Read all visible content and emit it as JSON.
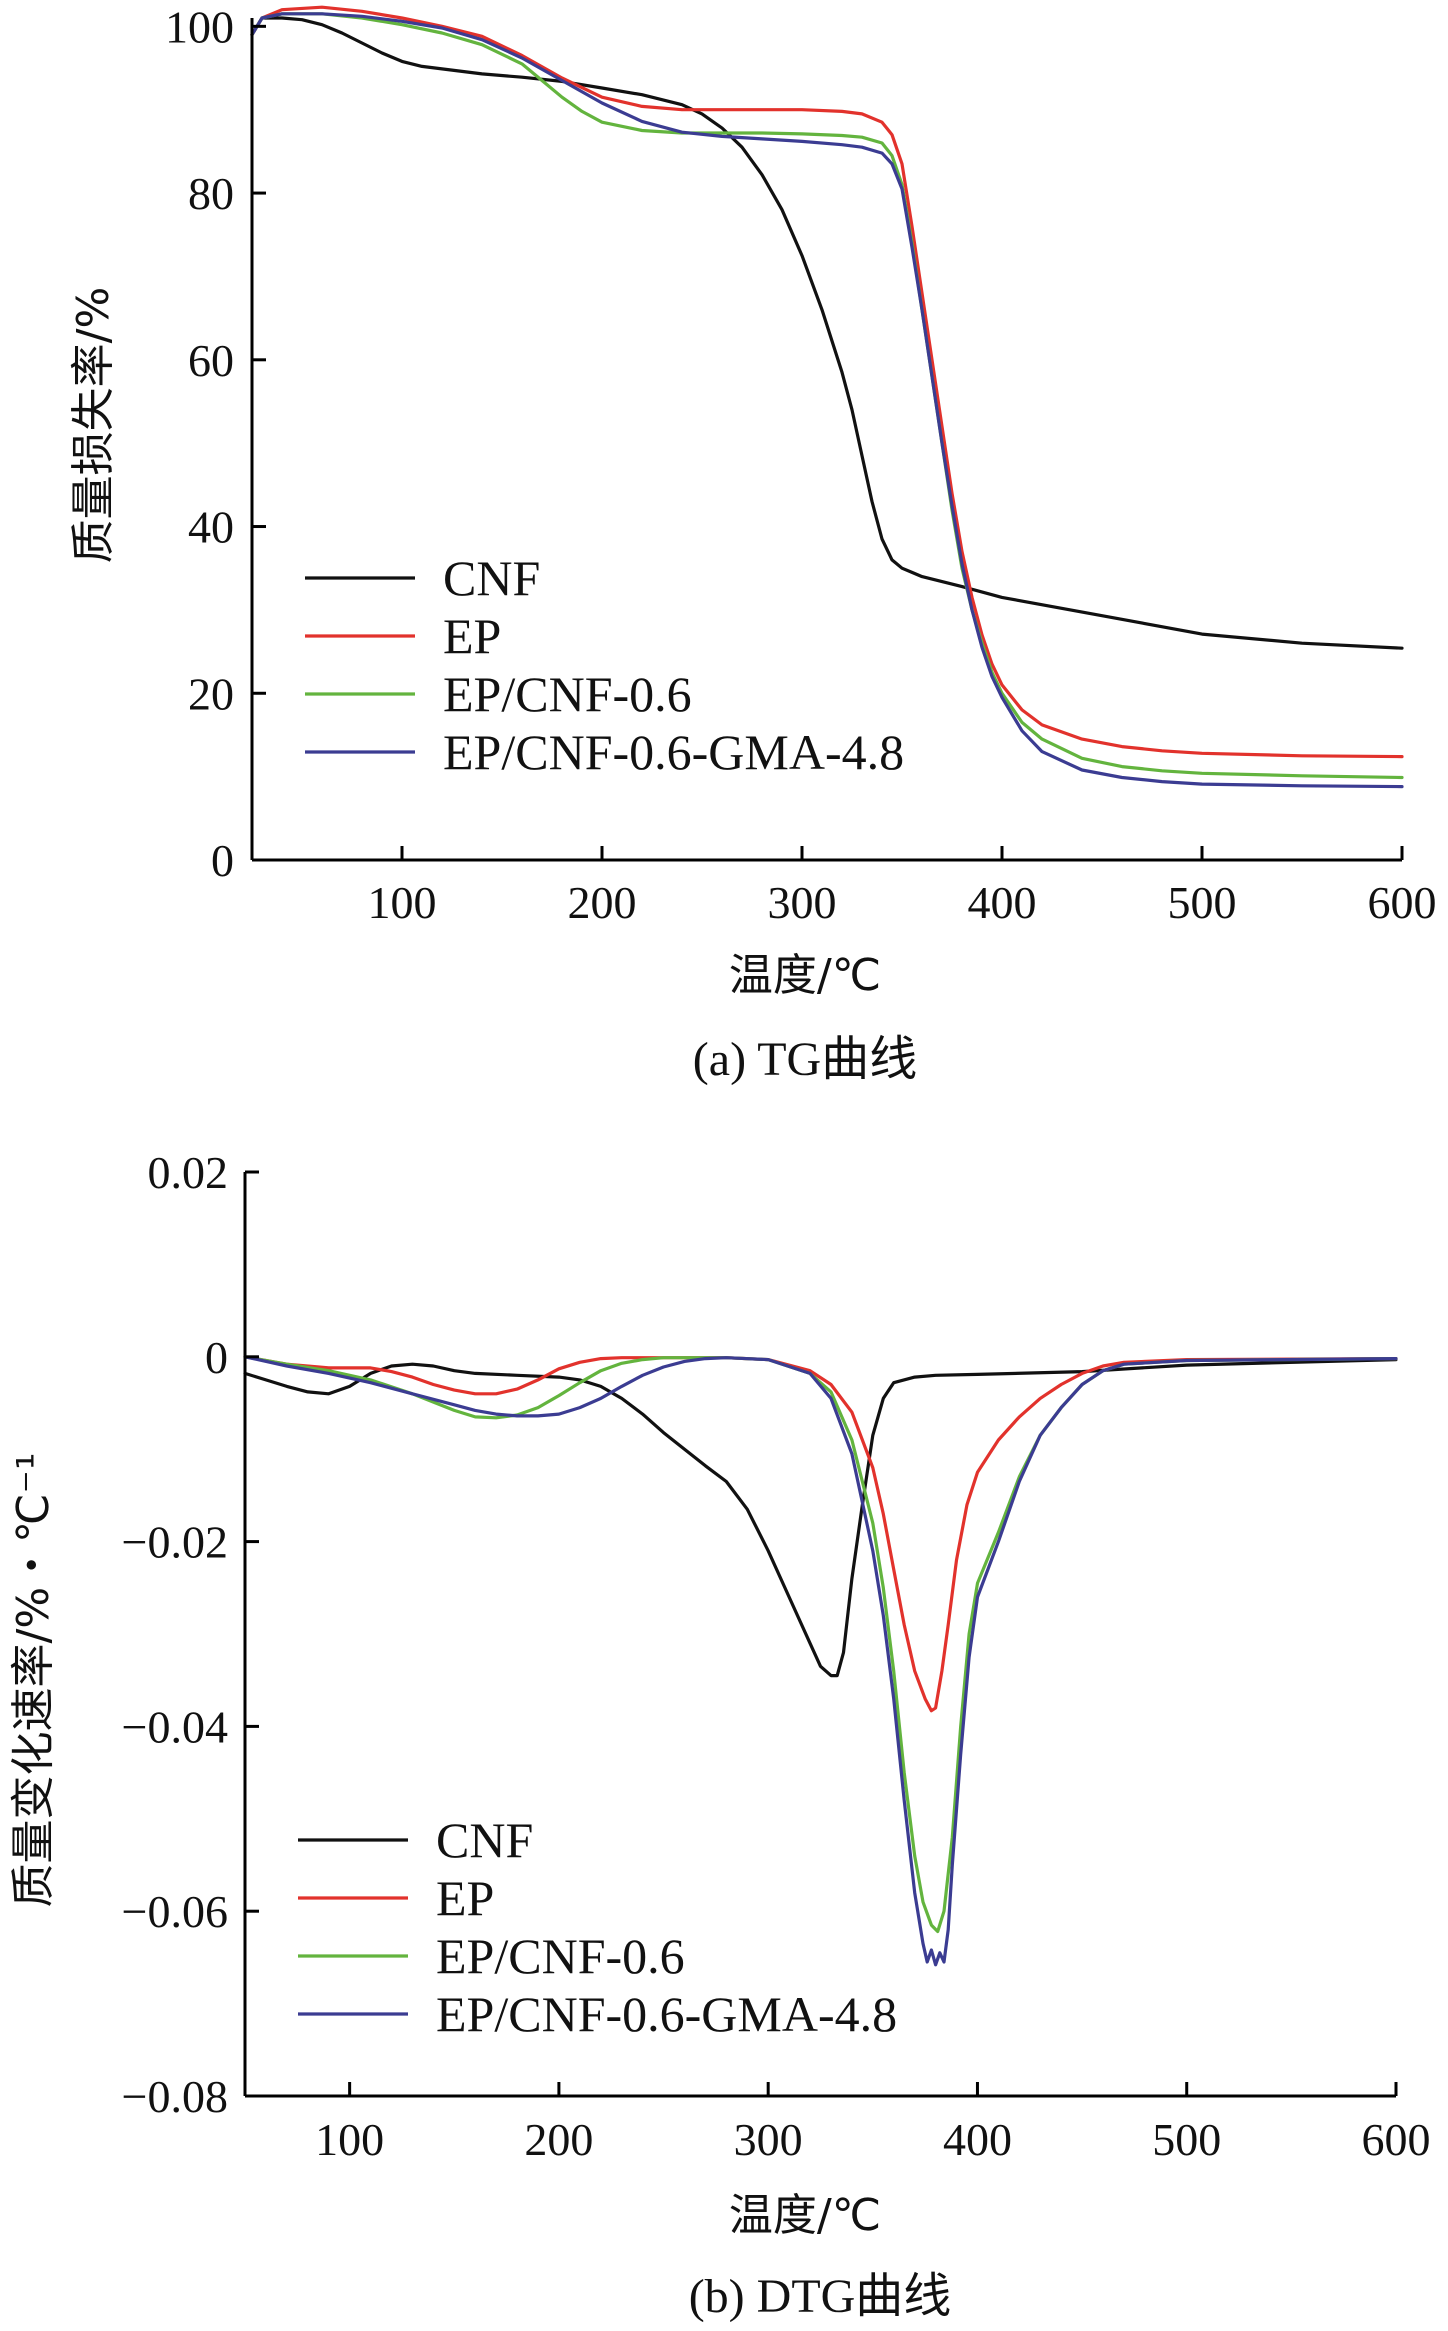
{
  "chart_data": [
    {
      "type": "line",
      "panel": "a",
      "caption": "(a) TG曲线",
      "title": "",
      "xlabel": "温度/℃",
      "ylabel": "质量损失率/%",
      "xlim": [
        25,
        600
      ],
      "ylim": [
        0,
        101
      ],
      "xticks": [
        100,
        200,
        300,
        400,
        500,
        600
      ],
      "yticks": [
        0,
        20,
        40,
        60,
        80,
        100
      ],
      "xtick_labels": [
        "100",
        "200",
        "300",
        "400",
        "500",
        "600"
      ],
      "ytick_labels": [
        "0",
        "20",
        "40",
        "60",
        "80",
        "100"
      ],
      "grid": false,
      "legend_position": "lower-left",
      "series": [
        {
          "name": "CNF",
          "color": "#111111",
          "x": [
            25,
            30,
            40,
            50,
            60,
            70,
            80,
            90,
            100,
            110,
            120,
            140,
            160,
            180,
            200,
            220,
            240,
            250,
            260,
            270,
            280,
            290,
            300,
            310,
            320,
            325,
            330,
            335,
            340,
            345,
            350,
            355,
            360,
            380,
            400,
            450,
            500,
            550,
            600
          ],
          "y": [
            99,
            101,
            101,
            100.8,
            100.2,
            99.2,
            98,
            96.8,
            95.8,
            95.2,
            94.9,
            94.3,
            93.9,
            93.4,
            92.6,
            91.8,
            90.6,
            89.5,
            87.8,
            85.5,
            82.2,
            78,
            72.5,
            66,
            58.5,
            54,
            48.5,
            43,
            38.5,
            36,
            35,
            34.5,
            34,
            32.8,
            31.5,
            29.3,
            27.1,
            26,
            25.4
          ]
        },
        {
          "name": "EP",
          "color": "#e2322c",
          "x": [
            25,
            30,
            40,
            60,
            80,
            100,
            120,
            140,
            160,
            180,
            200,
            220,
            240,
            260,
            280,
            300,
            320,
            330,
            340,
            345,
            350,
            355,
            360,
            365,
            370,
            375,
            380,
            385,
            390,
            395,
            400,
            410,
            420,
            440,
            460,
            480,
            500,
            550,
            600
          ],
          "y": [
            99,
            101,
            102,
            102.3,
            101.8,
            101,
            100,
            98.8,
            96.5,
            93.8,
            91.5,
            90.4,
            90,
            90,
            90,
            90,
            89.8,
            89.5,
            88.5,
            87,
            83.5,
            76,
            68,
            60,
            52,
            44,
            37,
            31.5,
            27,
            23.5,
            21,
            18,
            16.2,
            14.5,
            13.6,
            13.1,
            12.8,
            12.5,
            12.4
          ]
        },
        {
          "name": "EP/CNF-0.6",
          "color": "#63b43e",
          "x": [
            25,
            30,
            40,
            60,
            80,
            100,
            120,
            140,
            160,
            170,
            180,
            190,
            200,
            220,
            240,
            260,
            280,
            300,
            320,
            330,
            340,
            345,
            350,
            355,
            360,
            365,
            370,
            375,
            380,
            385,
            390,
            395,
            400,
            410,
            420,
            440,
            460,
            480,
            500,
            550,
            600
          ],
          "y": [
            99,
            101,
            101.5,
            101.5,
            101,
            100.2,
            99.2,
            97.8,
            95.5,
            93.5,
            91.5,
            89.8,
            88.5,
            87.5,
            87.2,
            87.2,
            87.2,
            87.1,
            86.9,
            86.7,
            86,
            84.5,
            81,
            74,
            66,
            58,
            50,
            42,
            35,
            30,
            26,
            22.5,
            20,
            16.5,
            14.5,
            12.2,
            11.2,
            10.7,
            10.4,
            10.1,
            9.9
          ]
        },
        {
          "name": "EP/CNF-0.6-GMA-4.8",
          "color": "#3b3c92",
          "x": [
            25,
            30,
            40,
            60,
            80,
            100,
            120,
            140,
            160,
            180,
            200,
            220,
            240,
            260,
            280,
            300,
            320,
            330,
            340,
            345,
            350,
            355,
            360,
            365,
            370,
            375,
            380,
            385,
            390,
            395,
            400,
            410,
            420,
            440,
            460,
            480,
            500,
            550,
            600
          ],
          "y": [
            99,
            101,
            101.5,
            101.5,
            101.2,
            100.6,
            99.8,
            98.4,
            96.2,
            93.5,
            90.8,
            88.6,
            87.3,
            86.8,
            86.5,
            86.2,
            85.8,
            85.5,
            84.8,
            83.5,
            80.5,
            73.5,
            66,
            58,
            50,
            42.5,
            35.5,
            30,
            25.5,
            22,
            19.5,
            15.5,
            13,
            10.8,
            9.9,
            9.4,
            9.1,
            8.9,
            8.8
          ]
        }
      ]
    },
    {
      "type": "line",
      "panel": "b",
      "caption": "(b) DTG曲线",
      "title": "",
      "xlabel": "温度/℃",
      "ylabel": "质量变化速率/%・℃⁻¹",
      "xlim": [
        50,
        600
      ],
      "ylim": [
        -0.08,
        0.02
      ],
      "xticks": [
        100,
        200,
        300,
        400,
        500,
        600
      ],
      "yticks": [
        0.02,
        0,
        -0.02,
        -0.04,
        -0.06,
        -0.08
      ],
      "xtick_labels": [
        "100",
        "200",
        "300",
        "400",
        "500",
        "600"
      ],
      "ytick_labels": [
        "0.02",
        "0",
        "−0.02",
        "−0.04",
        "−0.06",
        "−0.08"
      ],
      "grid": false,
      "legend_position": "lower-left",
      "series": [
        {
          "name": "CNF",
          "color": "#111111",
          "x": [
            50,
            60,
            70,
            80,
            90,
            100,
            110,
            120,
            130,
            140,
            150,
            160,
            180,
            200,
            210,
            220,
            230,
            240,
            250,
            260,
            270,
            280,
            290,
            300,
            310,
            320,
            325,
            330,
            333,
            336,
            340,
            345,
            350,
            355,
            360,
            370,
            380,
            400,
            450,
            500,
            600
          ],
          "y": [
            -0.0018,
            -0.0025,
            -0.0032,
            -0.0038,
            -0.004,
            -0.0032,
            -0.0018,
            -0.001,
            -0.0008,
            -0.001,
            -0.0015,
            -0.0018,
            -0.002,
            -0.0022,
            -0.0025,
            -0.0032,
            -0.0045,
            -0.0062,
            -0.0082,
            -0.01,
            -0.0118,
            -0.0135,
            -0.0165,
            -0.021,
            -0.026,
            -0.031,
            -0.0335,
            -0.0345,
            -0.0345,
            -0.032,
            -0.024,
            -0.016,
            -0.0085,
            -0.0045,
            -0.0028,
            -0.0022,
            -0.002,
            -0.0019,
            -0.0016,
            -0.0009,
            -0.0003
          ]
        },
        {
          "name": "EP",
          "color": "#e2322c",
          "x": [
            50,
            70,
            90,
            100,
            110,
            120,
            130,
            140,
            150,
            160,
            170,
            180,
            190,
            200,
            210,
            220,
            230,
            250,
            280,
            300,
            320,
            330,
            340,
            350,
            355,
            360,
            365,
            370,
            375,
            378,
            380,
            383,
            386,
            390,
            395,
            400,
            410,
            420,
            430,
            440,
            450,
            460,
            470,
            500,
            600
          ],
          "y": [
            0,
            -0.0008,
            -0.0012,
            -0.0012,
            -0.0012,
            -0.0016,
            -0.0022,
            -0.003,
            -0.0036,
            -0.004,
            -0.004,
            -0.0035,
            -0.0025,
            -0.0013,
            -0.0006,
            -0.0002,
            -0.0001,
            -0.0001,
            -0.0001,
            -0.0003,
            -0.0015,
            -0.003,
            -0.006,
            -0.012,
            -0.017,
            -0.023,
            -0.029,
            -0.034,
            -0.037,
            -0.0383,
            -0.038,
            -0.034,
            -0.029,
            -0.022,
            -0.016,
            -0.0125,
            -0.009,
            -0.0065,
            -0.0045,
            -0.003,
            -0.0018,
            -0.001,
            -0.0006,
            -0.0003,
            -0.0002
          ]
        },
        {
          "name": "EP/CNF-0.6",
          "color": "#63b43e",
          "x": [
            50,
            70,
            90,
            110,
            130,
            150,
            160,
            170,
            180,
            190,
            200,
            210,
            220,
            230,
            240,
            250,
            260,
            280,
            300,
            320,
            330,
            340,
            350,
            355,
            360,
            365,
            370,
            374,
            378,
            381,
            384,
            388,
            392,
            396,
            400,
            410,
            420,
            430,
            440,
            450,
            460,
            470,
            500,
            600
          ],
          "y": [
            0,
            -0.0008,
            -0.0015,
            -0.0025,
            -0.004,
            -0.0058,
            -0.0065,
            -0.0066,
            -0.0063,
            -0.0055,
            -0.0042,
            -0.0028,
            -0.0015,
            -0.0007,
            -0.0003,
            -0.0001,
            -0.0001,
            -0.0001,
            -0.0003,
            -0.0018,
            -0.0038,
            -0.009,
            -0.018,
            -0.025,
            -0.034,
            -0.045,
            -0.054,
            -0.059,
            -0.0615,
            -0.0622,
            -0.06,
            -0.052,
            -0.04,
            -0.03,
            -0.0245,
            -0.019,
            -0.013,
            -0.0085,
            -0.0055,
            -0.003,
            -0.0015,
            -0.0008,
            -0.0004,
            -0.0002
          ]
        },
        {
          "name": "EP/CNF-0.6-GMA-4.8",
          "color": "#3b3c92",
          "x": [
            50,
            70,
            90,
            110,
            130,
            150,
            160,
            170,
            180,
            190,
            200,
            210,
            220,
            230,
            240,
            250,
            260,
            270,
            280,
            300,
            320,
            330,
            340,
            350,
            355,
            360,
            365,
            370,
            374,
            376,
            378,
            380,
            382,
            384,
            386,
            388,
            392,
            396,
            400,
            410,
            420,
            430,
            440,
            450,
            460,
            470,
            500,
            600
          ],
          "y": [
            0,
            -0.001,
            -0.0018,
            -0.0028,
            -0.004,
            -0.0052,
            -0.0058,
            -0.0062,
            -0.0064,
            -0.0064,
            -0.0062,
            -0.0055,
            -0.0045,
            -0.0032,
            -0.002,
            -0.0011,
            -0.0005,
            -0.0002,
            -0.0001,
            -0.0003,
            -0.0018,
            -0.0045,
            -0.0105,
            -0.021,
            -0.028,
            -0.037,
            -0.048,
            -0.058,
            -0.0635,
            -0.0655,
            -0.0642,
            -0.0658,
            -0.0645,
            -0.0655,
            -0.062,
            -0.055,
            -0.043,
            -0.0325,
            -0.026,
            -0.02,
            -0.0135,
            -0.0085,
            -0.0055,
            -0.003,
            -0.0015,
            -0.0008,
            -0.0004,
            -0.0002
          ]
        }
      ]
    }
  ]
}
